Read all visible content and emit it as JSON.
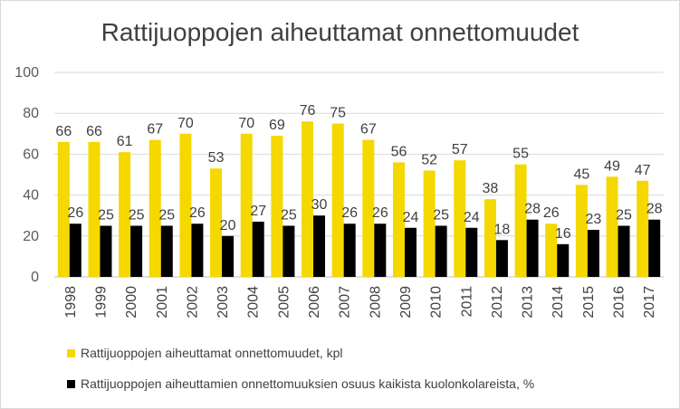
{
  "chart_data": {
    "type": "bar",
    "title": "Rattijuoppojen aiheuttamat onnettomuudet",
    "categories": [
      "1998",
      "1999",
      "2000",
      "2001",
      "2002",
      "2003",
      "2004",
      "2005",
      "2006",
      "2007",
      "2008",
      "2009",
      "2010",
      "2011",
      "2012",
      "2013",
      "2014",
      "2015",
      "2016",
      "2017"
    ],
    "series": [
      {
        "name": "Rattijuoppojen aiheuttamat onnettomuudet, kpl",
        "color": "#f5d800",
        "values": [
          66,
          66,
          61,
          67,
          70,
          53,
          70,
          69,
          76,
          75,
          67,
          56,
          52,
          57,
          38,
          55,
          26,
          45,
          49,
          47
        ]
      },
      {
        "name": "Rattijuoppojen aiheuttamien onnettomuuksien osuus kaikista kuolonkolareista, %",
        "color": "#000000",
        "values": [
          26,
          25,
          25,
          25,
          26,
          20,
          27,
          25,
          30,
          26,
          26,
          24,
          25,
          24,
          18,
          28,
          16,
          23,
          25,
          28
        ]
      }
    ],
    "yticks": [
      0,
      20,
      40,
      60,
      80,
      100
    ],
    "ylim": [
      0,
      100
    ],
    "grid": true,
    "legend_position": "bottom",
    "xlabel": "",
    "ylabel": ""
  }
}
